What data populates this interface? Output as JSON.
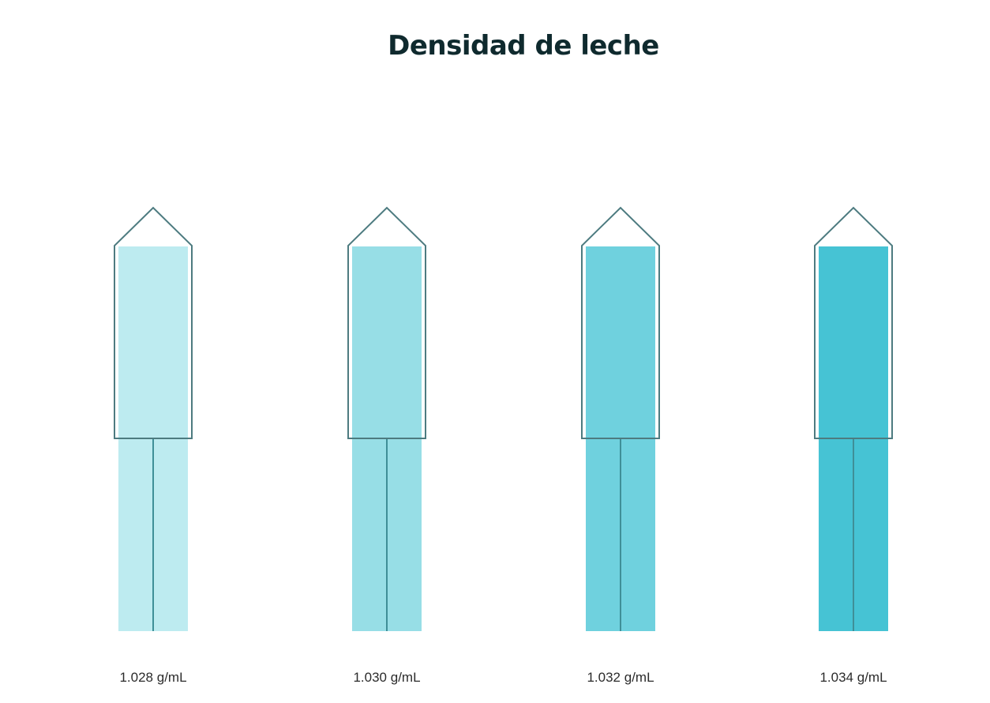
{
  "title": "Densidad de leche",
  "colors": {
    "outline": "#4d7b80",
    "stem_line": "#3f8f98"
  },
  "hydrometers": [
    {
      "label": "1.028 g/mL",
      "fill_color": "#bdebf0"
    },
    {
      "label": "1.030 g/mL",
      "fill_color": "#97dee6"
    },
    {
      "label": "1.032 g/mL",
      "fill_color": "#6fd1de"
    },
    {
      "label": "1.034 g/mL",
      "fill_color": "#46c3d4"
    }
  ]
}
